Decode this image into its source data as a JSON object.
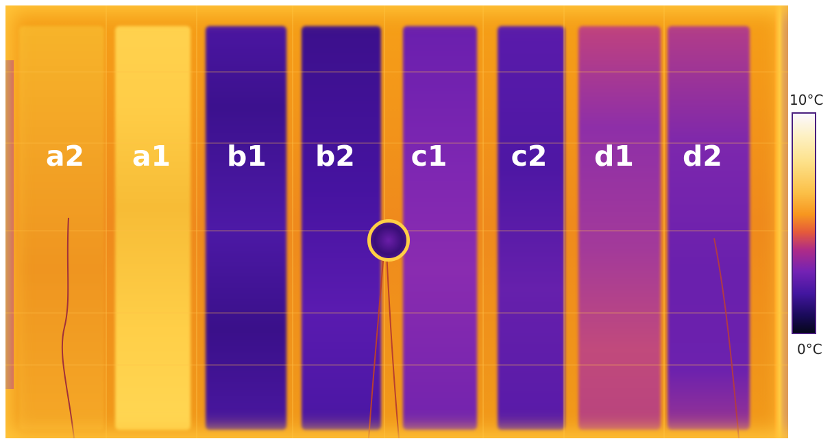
{
  "panels": [
    {
      "id": "a2",
      "label": "a2"
    },
    {
      "id": "a1",
      "label": "a1"
    },
    {
      "id": "b1",
      "label": "b1"
    },
    {
      "id": "b2",
      "label": "b2"
    },
    {
      "id": "c1",
      "label": "c1"
    },
    {
      "id": "c2",
      "label": "c2"
    },
    {
      "id": "d1",
      "label": "d1"
    },
    {
      "id": "d2",
      "label": "d2"
    }
  ],
  "color_scale": {
    "max_label": "10°C",
    "min_label": "0°C",
    "colors": [
      "#fbf8ff",
      "#fde18a",
      "#f7961f",
      "#b02c86",
      "#4316a0",
      "#06071a"
    ]
  }
}
